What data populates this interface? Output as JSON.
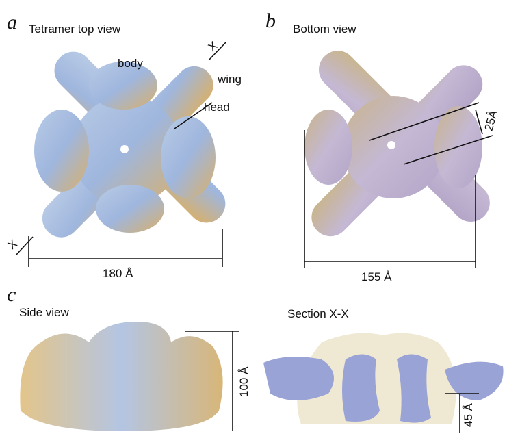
{
  "panels": [
    {
      "letter": "a",
      "title": "Tetramer top view",
      "labels": [
        "body",
        "wing",
        "head",
        "X",
        "X"
      ],
      "dimension": "180 Å"
    },
    {
      "letter": "b",
      "title": "Bottom view",
      "dimensions": [
        "25Å",
        "155 Å"
      ]
    },
    {
      "letter": "c",
      "titles": [
        "Side view",
        "Section X-X"
      ],
      "dimensions": [
        "100 Å",
        "45 Å"
      ]
    }
  ]
}
